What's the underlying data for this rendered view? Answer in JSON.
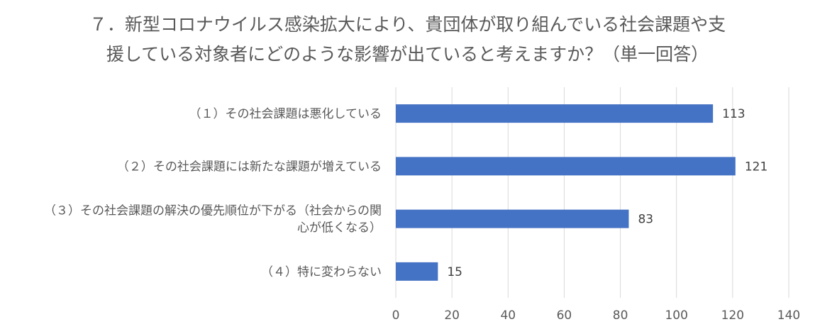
{
  "chart_data": {
    "type": "bar",
    "orientation": "horizontal",
    "title_lines": [
      "７．新型コロナウイルス感染拡大により、貴団体が取り組んでいる社会課題や支",
      "援している対象者にどのような影響が出ていると考えますか？（単一回答）"
    ],
    "categories": [
      [
        "（１）その社会課題は悪化している"
      ],
      [
        "（２）その社会課題には新たな課題が増えている"
      ],
      [
        "（３）その社会課題の解決の優先順位が下がる（社会からの関",
        "心が低くなる）"
      ],
      [
        "（４）特に変わらない"
      ]
    ],
    "values": [
      113,
      121,
      83,
      15
    ],
    "xlim": [
      0,
      140
    ],
    "xticks": [
      0,
      20,
      40,
      60,
      80,
      100,
      120,
      140
    ],
    "grid": true,
    "bar_color": "#4472C4",
    "grid_color": "#D9D9D9"
  }
}
